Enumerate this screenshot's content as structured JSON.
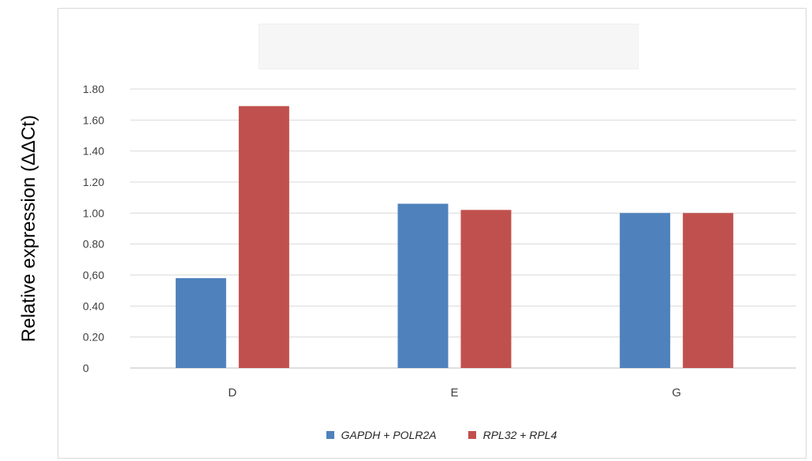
{
  "chart_data": {
    "type": "bar",
    "categories": [
      "D",
      "E",
      "G"
    ],
    "series": [
      {
        "name": "GAPDH + POLR2A",
        "values": [
          0.58,
          1.06,
          1.0
        ],
        "color": "#4f81bd"
      },
      {
        "name": "RPL32 + RPL4",
        "values": [
          1.69,
          1.02,
          1.0
        ],
        "color": "#c0504d"
      }
    ],
    "ylabel": "Relative expression (ΔΔCt)",
    "ylim": [
      0,
      1.8
    ],
    "yticks": [
      0,
      0.2,
      0.4,
      0.6,
      0.8,
      1.0,
      1.2,
      1.4,
      1.6,
      1.8
    ],
    "ytick_labels": [
      "0",
      "0.20",
      "0.40",
      "0,60",
      "0.80",
      "1.00",
      "1.20",
      "1.40",
      "1.60",
      "1.80"
    ],
    "grid": true,
    "legend_position": "bottom"
  }
}
